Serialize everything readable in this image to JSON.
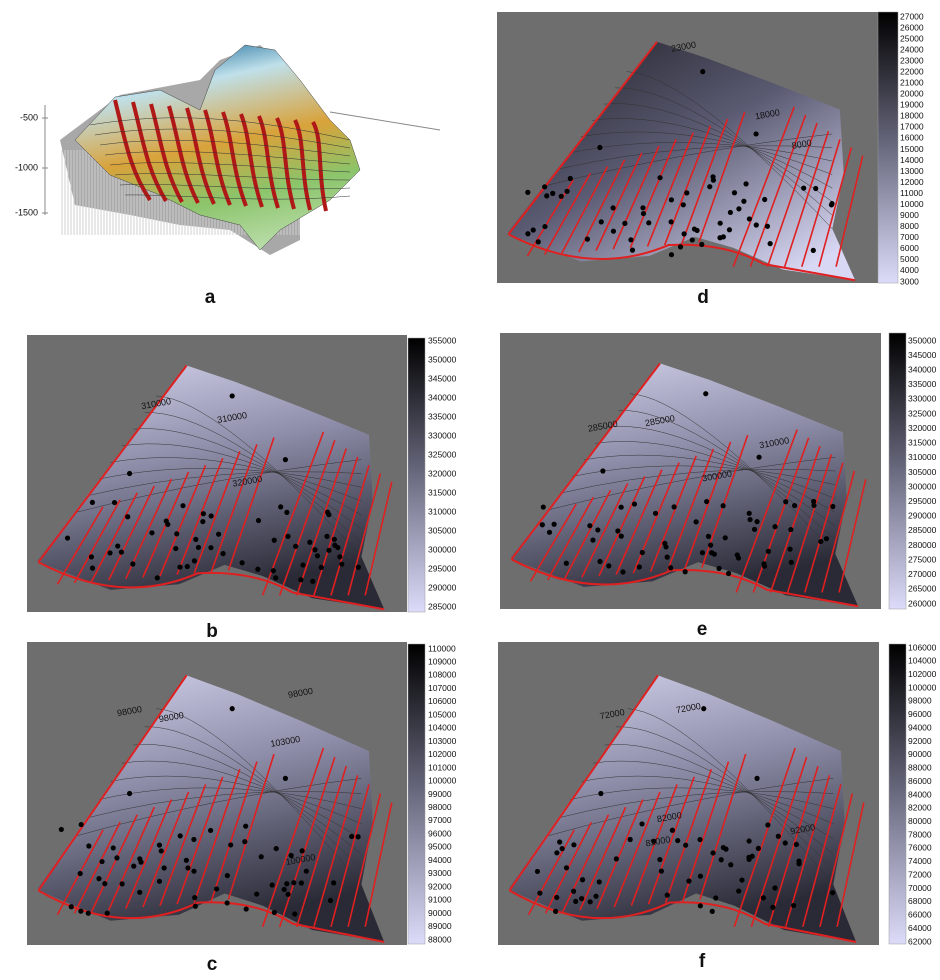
{
  "panels": [
    {
      "label": "a",
      "axis_labels": [
        "-500",
        "-1000",
        "-1500"
      ]
    },
    {
      "label": "b",
      "colorbar": [
        355000,
        350000,
        345000,
        340000,
        335000,
        330000,
        325000,
        320000,
        315000,
        310000,
        305000,
        300000,
        295000,
        290000,
        285000
      ],
      "contour_labels": [
        "310000",
        "310000",
        "320000"
      ]
    },
    {
      "label": "c",
      "colorbar": [
        110000,
        109000,
        108000,
        107000,
        106000,
        105000,
        104000,
        103000,
        102000,
        101000,
        100000,
        99000,
        98000,
        97000,
        96000,
        95000,
        94000,
        93000,
        92000,
        91000,
        90000,
        89000,
        88000
      ],
      "contour_labels": [
        "98000",
        "98000",
        "98000",
        "103000",
        "100000"
      ]
    },
    {
      "label": "d",
      "colorbar": [
        27000,
        26000,
        25000,
        24000,
        23000,
        22000,
        21000,
        20000,
        19000,
        18000,
        17000,
        16000,
        15000,
        14000,
        13000,
        12000,
        11000,
        10000,
        9000,
        8000,
        7000,
        6000,
        5000,
        4000,
        3000
      ],
      "contour_labels": [
        "23000",
        "18000",
        "8000"
      ]
    },
    {
      "label": "e",
      "colorbar": [
        350000,
        345000,
        340000,
        335000,
        330000,
        325000,
        320000,
        315000,
        310000,
        305000,
        300000,
        295000,
        290000,
        285000,
        280000,
        275000,
        270000,
        265000,
        260000
      ],
      "contour_labels": [
        "285000",
        "285000",
        "310000",
        "300000"
      ]
    },
    {
      "label": "f",
      "colorbar": [
        106000,
        104000,
        102000,
        100000,
        98000,
        96000,
        94000,
        92000,
        90000,
        88000,
        86000,
        84000,
        82000,
        80000,
        78000,
        76000,
        74000,
        72000,
        70000,
        68000,
        66000,
        64000,
        62000
      ],
      "contour_labels": [
        "72000",
        "72000",
        "82000",
        "92000",
        "82000"
      ]
    }
  ]
}
